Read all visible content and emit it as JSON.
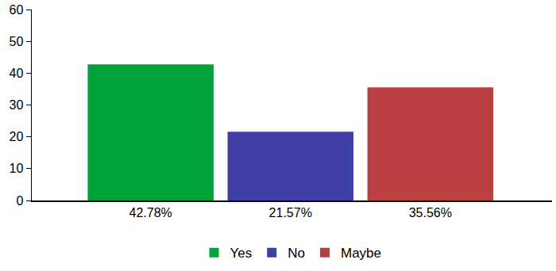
{
  "chart_data": {
    "type": "bar",
    "categories": [
      "Yes",
      "No",
      "Maybe"
    ],
    "values": [
      42.78,
      21.57,
      35.56
    ],
    "value_labels": [
      "42.78%",
      "21.57%",
      "35.56%"
    ],
    "data_labels": true,
    "colors": [
      "#00a23a",
      "#3f3fa6",
      "#b93f40"
    ],
    "ylim": [
      0,
      60
    ],
    "yticks": [
      0,
      10,
      20,
      30,
      40,
      50,
      60
    ],
    "grid": false,
    "legend": "bottom"
  }
}
